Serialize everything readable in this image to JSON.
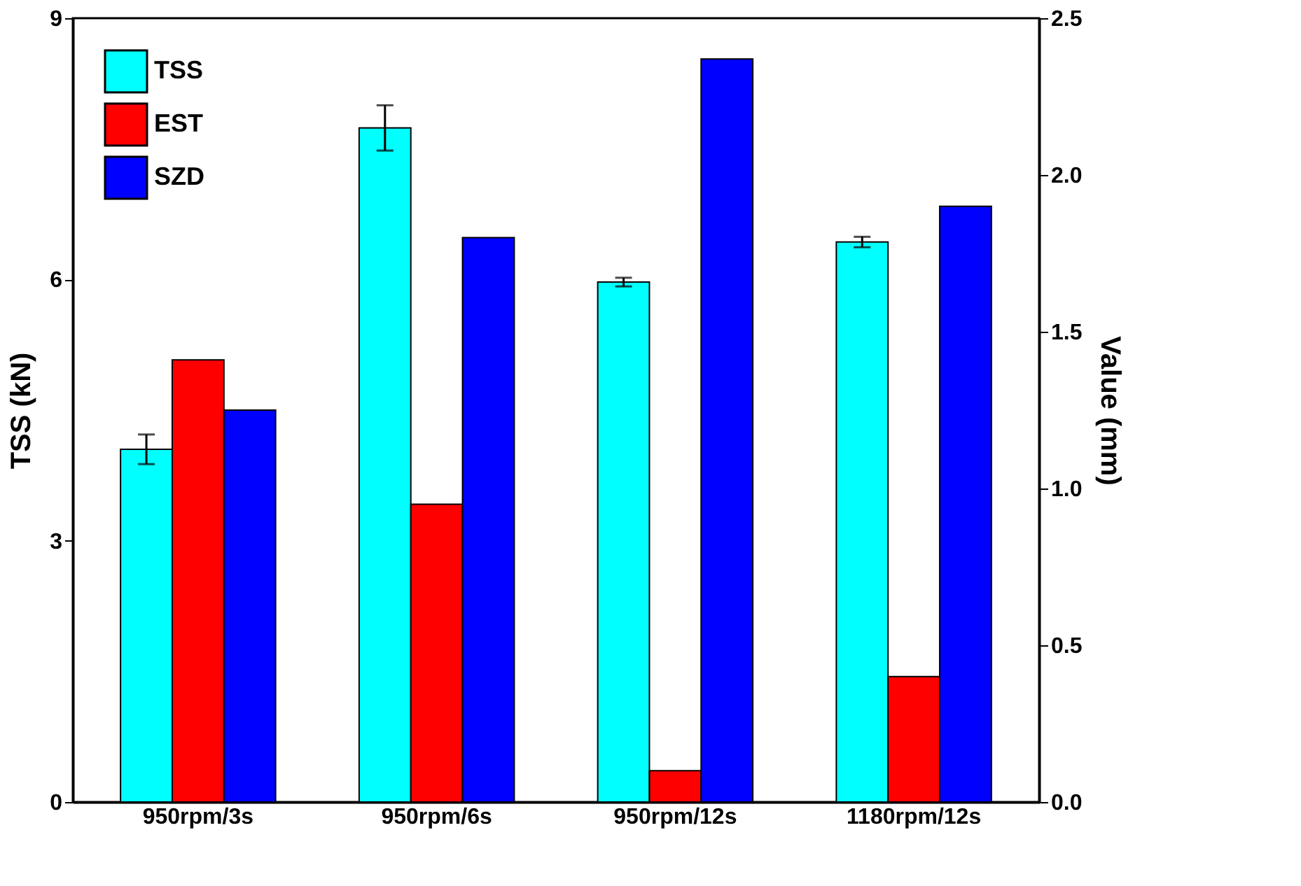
{
  "chart_data": {
    "type": "bar",
    "categories": [
      "950rpm/3s",
      "950rpm/6s",
      "950rpm/12s",
      "1180rpm/12s"
    ],
    "ylabel": "TSS (kN)",
    "y2label": "Value (mm)",
    "ylim": [
      0,
      9
    ],
    "yticks": [
      0,
      3,
      6,
      9
    ],
    "y2lim": [
      0,
      2.5
    ],
    "y2ticks": [
      {
        "value": 0,
        "label": "0.0"
      },
      0.5,
      {
        "value": 1,
        "label": "1.0"
      },
      1.5,
      {
        "value": 2,
        "label": "2.0"
      },
      2.5
    ],
    "legend": "top left",
    "grid": false,
    "series": [
      {
        "name": "TSS",
        "color": "#00ffff",
        "values": [
          4.05,
          7.74,
          5.97,
          6.43
        ],
        "errors": [
          0.17,
          0.26,
          0.05,
          0.06
        ]
      },
      {
        "name": "EST",
        "color": "#ff0000",
        "axis": "y2",
        "values": [
          1.41,
          0.95,
          0.1,
          0.4
        ]
      },
      {
        "name": "SZD",
        "color": "#0000ff",
        "axis": "y2",
        "values": [
          1.25,
          1.8,
          2.37,
          1.9
        ]
      }
    ]
  }
}
